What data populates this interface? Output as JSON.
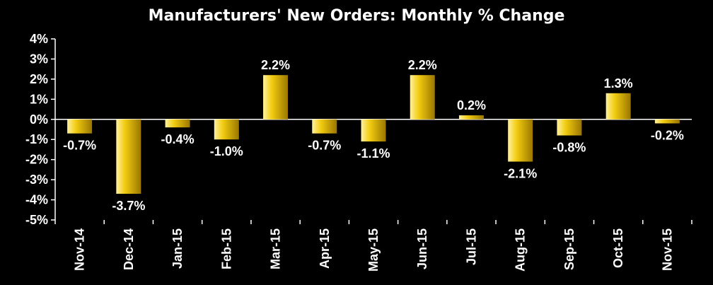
{
  "chart_data": {
    "type": "bar",
    "title": "Manufacturers' New Orders: Monthly % Change",
    "categories": [
      "Nov-14",
      "Dec-14",
      "Jan-15",
      "Feb-15",
      "Mar-15",
      "Apr-15",
      "May-15",
      "Jun-15",
      "Jul-15",
      "Aug-15",
      "Sep-15",
      "Oct-15",
      "Nov-15"
    ],
    "values": [
      -0.7,
      -3.7,
      -0.4,
      -1.0,
      2.2,
      -0.7,
      -1.1,
      2.2,
      0.2,
      -2.1,
      -0.8,
      1.3,
      -0.2
    ],
    "data_labels": [
      "-0.7%",
      "-3.7%",
      "-0.4%",
      "-1.0%",
      "2.2%",
      "-0.7%",
      "-1.1%",
      "2.2%",
      "0.2%",
      "-2.1%",
      "-0.8%",
      "1.3%",
      "-0.2%"
    ],
    "y_ticks": [
      4,
      3,
      2,
      1,
      0,
      -1,
      -2,
      -3,
      -4,
      -5
    ],
    "y_tick_labels": [
      "4%",
      "3%",
      "2%",
      "1%",
      "0%",
      "-1%",
      "-2%",
      "-3%",
      "-4%",
      "-5%"
    ],
    "ylim": [
      -5,
      4
    ],
    "xlabel": "",
    "ylabel": "",
    "grid": false,
    "colors": {
      "background": "#000000",
      "bar_light": "#ffe56b",
      "bar_dark": "#a07c00",
      "text": "#ffffff",
      "axis": "#ffffff"
    }
  }
}
